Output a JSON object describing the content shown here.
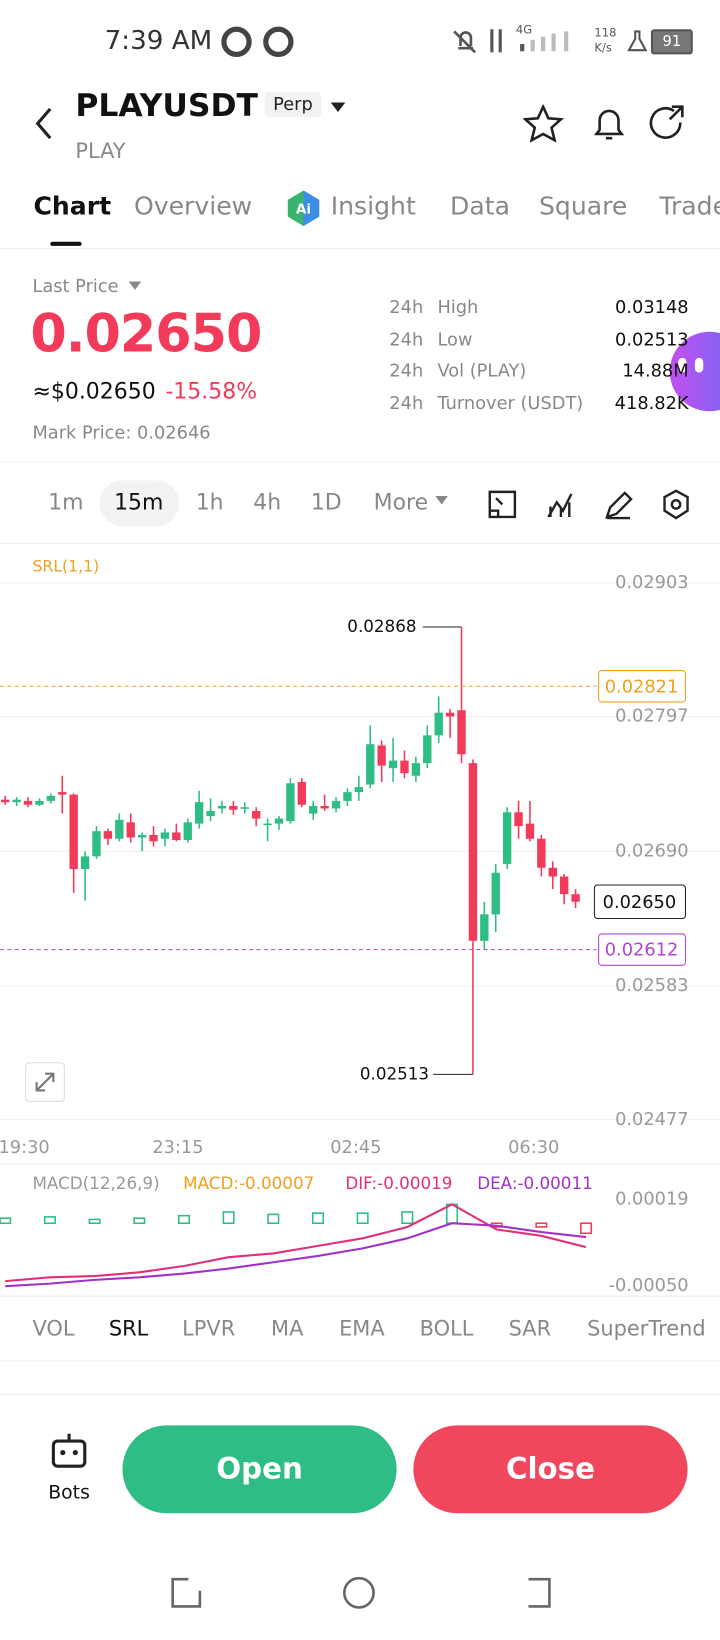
{
  "status_bar": {
    "time": "7:39 AM",
    "network": "4G",
    "speed": "118",
    "speed_unit": "K/s",
    "battery": "91"
  },
  "header": {
    "symbol": "PLAYUSDT",
    "badge": "Perp",
    "subtitle": "PLAY"
  },
  "tabs": [
    "Chart",
    "Overview",
    "Insight",
    "Data",
    "Square",
    "Trade"
  ],
  "price": {
    "label": "Last Price",
    "last": "0.02650",
    "usd": "≈$0.02650",
    "change": "-15.58%",
    "mark": "Mark Price: 0.02646"
  },
  "stats": [
    {
      "period": "24h",
      "name": "High",
      "value": "0.03148"
    },
    {
      "period": "24h",
      "name": "Low",
      "value": "0.02513"
    },
    {
      "period": "24h",
      "name": "Vol (PLAY)",
      "value": "14.88M"
    },
    {
      "period": "24h",
      "name": "Turnover (USDT)",
      "value": "418.82K"
    }
  ],
  "timeframes": [
    "1m",
    "15m",
    "1h",
    "4h",
    "1D",
    "More"
  ],
  "indicators": [
    "VOL",
    "SRL",
    "LPVR",
    "MA",
    "EMA",
    "BOLL",
    "SAR",
    "SuperTrend"
  ],
  "buttons": {
    "bots": "Bots",
    "open": "Open",
    "close": "Close"
  },
  "chart_data": [
    {
      "type": "candlestick",
      "indicator_label": "SRL(1,1)",
      "up_color": "#2ebd85",
      "down_color": "#f23a5a",
      "open": [
        0.02731,
        0.02729,
        0.0273,
        0.02727,
        0.0273,
        0.02737,
        0.02735,
        0.02676,
        0.02686,
        0.02706,
        0.027,
        0.02713,
        0.02701,
        0.02703,
        0.027,
        0.02705,
        0.02699,
        0.02712,
        0.02718,
        0.02724,
        0.02726,
        0.02724,
        0.02722,
        0.02712,
        0.02712,
        0.02714,
        0.02745,
        0.0272,
        0.02726,
        0.02724,
        0.0273,
        0.02737,
        0.02743,
        0.02774,
        0.02756,
        0.02762,
        0.0275,
        0.0276,
        0.02782,
        0.028,
        0.02802,
        0.0276,
        0.02619,
        0.0264,
        0.0268,
        0.02721,
        0.02712,
        0.027,
        0.02677,
        0.0267,
        0.02656
      ],
      "high": [
        0.02734,
        0.02733,
        0.02733,
        0.02732,
        0.02736,
        0.0275,
        0.02736,
        0.0269,
        0.0271,
        0.02708,
        0.0272,
        0.0272,
        0.02705,
        0.0271,
        0.02708,
        0.02712,
        0.02716,
        0.02738,
        0.02732,
        0.0273,
        0.0273,
        0.02729,
        0.02725,
        0.02716,
        0.02718,
        0.02748,
        0.02748,
        0.0273,
        0.02735,
        0.02733,
        0.0274,
        0.0275,
        0.0279,
        0.02778,
        0.0278,
        0.0277,
        0.02765,
        0.0279,
        0.02813,
        0.02803,
        0.02868,
        0.02763,
        0.0265,
        0.0268,
        0.02725,
        0.0273,
        0.0273,
        0.02703,
        0.02682,
        0.02672,
        0.0266
      ],
      "low": [
        0.02727,
        0.02726,
        0.02725,
        0.02726,
        0.02728,
        0.0272,
        0.02657,
        0.02651,
        0.02684,
        0.02695,
        0.02698,
        0.02697,
        0.0269,
        0.02694,
        0.02694,
        0.02698,
        0.02697,
        0.02708,
        0.02714,
        0.0272,
        0.02719,
        0.0272,
        0.0271,
        0.02698,
        0.02707,
        0.02712,
        0.02725,
        0.02715,
        0.02722,
        0.02721,
        0.02726,
        0.0273,
        0.0274,
        0.02745,
        0.02745,
        0.02748,
        0.02745,
        0.02756,
        0.02776,
        0.0278,
        0.0276,
        0.02513,
        0.02612,
        0.02626,
        0.02676,
        0.027,
        0.02698,
        0.0267,
        0.0266,
        0.02648,
        0.02645
      ],
      "close": [
        0.02729,
        0.02731,
        0.02727,
        0.0273,
        0.02734,
        0.02735,
        0.02676,
        0.02686,
        0.02706,
        0.027,
        0.02715,
        0.02701,
        0.02703,
        0.02698,
        0.02705,
        0.02699,
        0.02713,
        0.02729,
        0.02722,
        0.02726,
        0.02723,
        0.02725,
        0.02716,
        0.02712,
        0.02716,
        0.02744,
        0.02727,
        0.02726,
        0.02724,
        0.0273,
        0.02737,
        0.02741,
        0.02775,
        0.02758,
        0.02762,
        0.02752,
        0.0276,
        0.02782,
        0.028,
        0.02797,
        0.02767,
        0.02619,
        0.0264,
        0.02673,
        0.02721,
        0.0271,
        0.027,
        0.02677,
        0.0267,
        0.02656,
        0.0265
      ],
      "ylim": [
        0.02477,
        0.02903
      ],
      "yticks": [
        0.02903,
        0.02797,
        {
          "value": 0.0269,
          "label": "0.02690"
        },
        0.02583,
        0.02477
      ],
      "x_labels": [
        "19:30",
        "23:15",
        "02:45",
        "06:30"
      ],
      "high_marker": 0.02868,
      "low_marker": 0.02513,
      "levels": [
        {
          "value": 0.02821,
          "color": "#f0a020"
        },
        {
          "value": 0.02612,
          "color": "#b044d8"
        }
      ],
      "last_price": {
        "value": 0.0265,
        "label": "0.02650"
      }
    },
    {
      "type": "macd",
      "legend": [
        {
          "text": "MACD(12,26,9)",
          "color": "#999999"
        },
        {
          "text": "MACD:-0.00007",
          "color": "#f0a020"
        },
        {
          "text": "DIF:-0.00019",
          "color": "#e0307a"
        },
        {
          "text": "DEA:-0.00011",
          "color": "#a032c8"
        }
      ],
      "ylim": [
        -0.0005,
        0.00019
      ],
      "yticks": [
        0.00019,
        {
          "value": -0.0005,
          "label": "-0.00050"
        }
      ],
      "dif": {
        "color": "#e0307a",
        "values": [
          -0.00046,
          -0.00043,
          -0.00042,
          -0.00039,
          -0.00034,
          -0.00027,
          -0.00024,
          -0.00018,
          -0.00012,
          -3e-05,
          0.00015,
          -5e-05,
          -0.0001,
          -0.00019
        ]
      },
      "dea": {
        "color": "#a032c8",
        "values": [
          -0.0005,
          -0.00048,
          -0.00045,
          -0.00043,
          -0.0004,
          -0.00036,
          -0.00031,
          -0.00026,
          -0.0002,
          -0.00012,
          0.0,
          -2e-05,
          -7e-05,
          -0.00011
        ]
      },
      "histogram": [
        4e-05,
        5e-05,
        3e-05,
        4e-05,
        6e-05,
        9e-05,
        7e-05,
        8e-05,
        8e-05,
        9e-05,
        0.00015,
        -3e-05,
        -3e-05,
        -8e-05
      ]
    }
  ]
}
